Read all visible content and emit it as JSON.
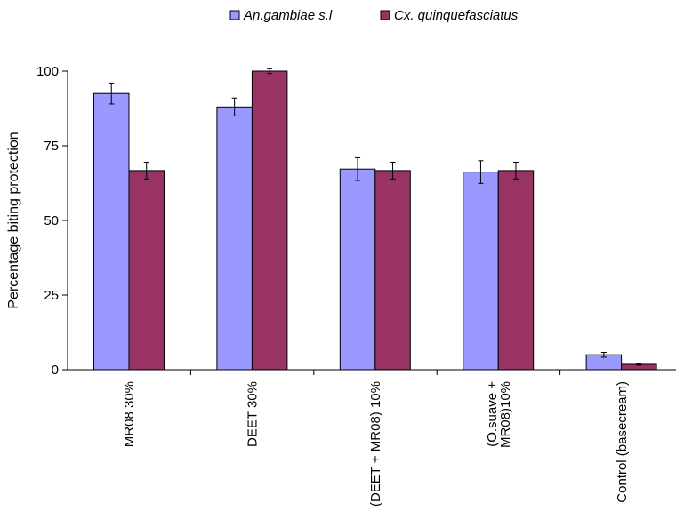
{
  "chart_data": {
    "type": "bar",
    "title": "",
    "xlabel": "",
    "ylabel": "Percentage biting protection",
    "ylim": [
      0,
      100
    ],
    "yticks": [
      0,
      25,
      50,
      75,
      100
    ],
    "grid": false,
    "legend_position": "top",
    "categories": [
      [
        "MR08 30%"
      ],
      [
        "DEET 30%"
      ],
      [
        "(DEET + MR08) 10%"
      ],
      [
        "(O.suave +",
        "MR08)10%"
      ],
      [
        "Control (basecream)"
      ]
    ],
    "series": [
      {
        "name": "An.gambiae s.l",
        "color": "#9999ff",
        "values": [
          92.5,
          88,
          67.2,
          66.2,
          5
        ],
        "errors": [
          3.5,
          3,
          3.8,
          3.8,
          0.8
        ]
      },
      {
        "name": "Cx. quinquefasciatus",
        "color": "#993366",
        "values": [
          66.7,
          100,
          66.7,
          66.7,
          1.8
        ],
        "errors": [
          2.8,
          0.8,
          2.8,
          2.8,
          0.3
        ]
      }
    ]
  }
}
